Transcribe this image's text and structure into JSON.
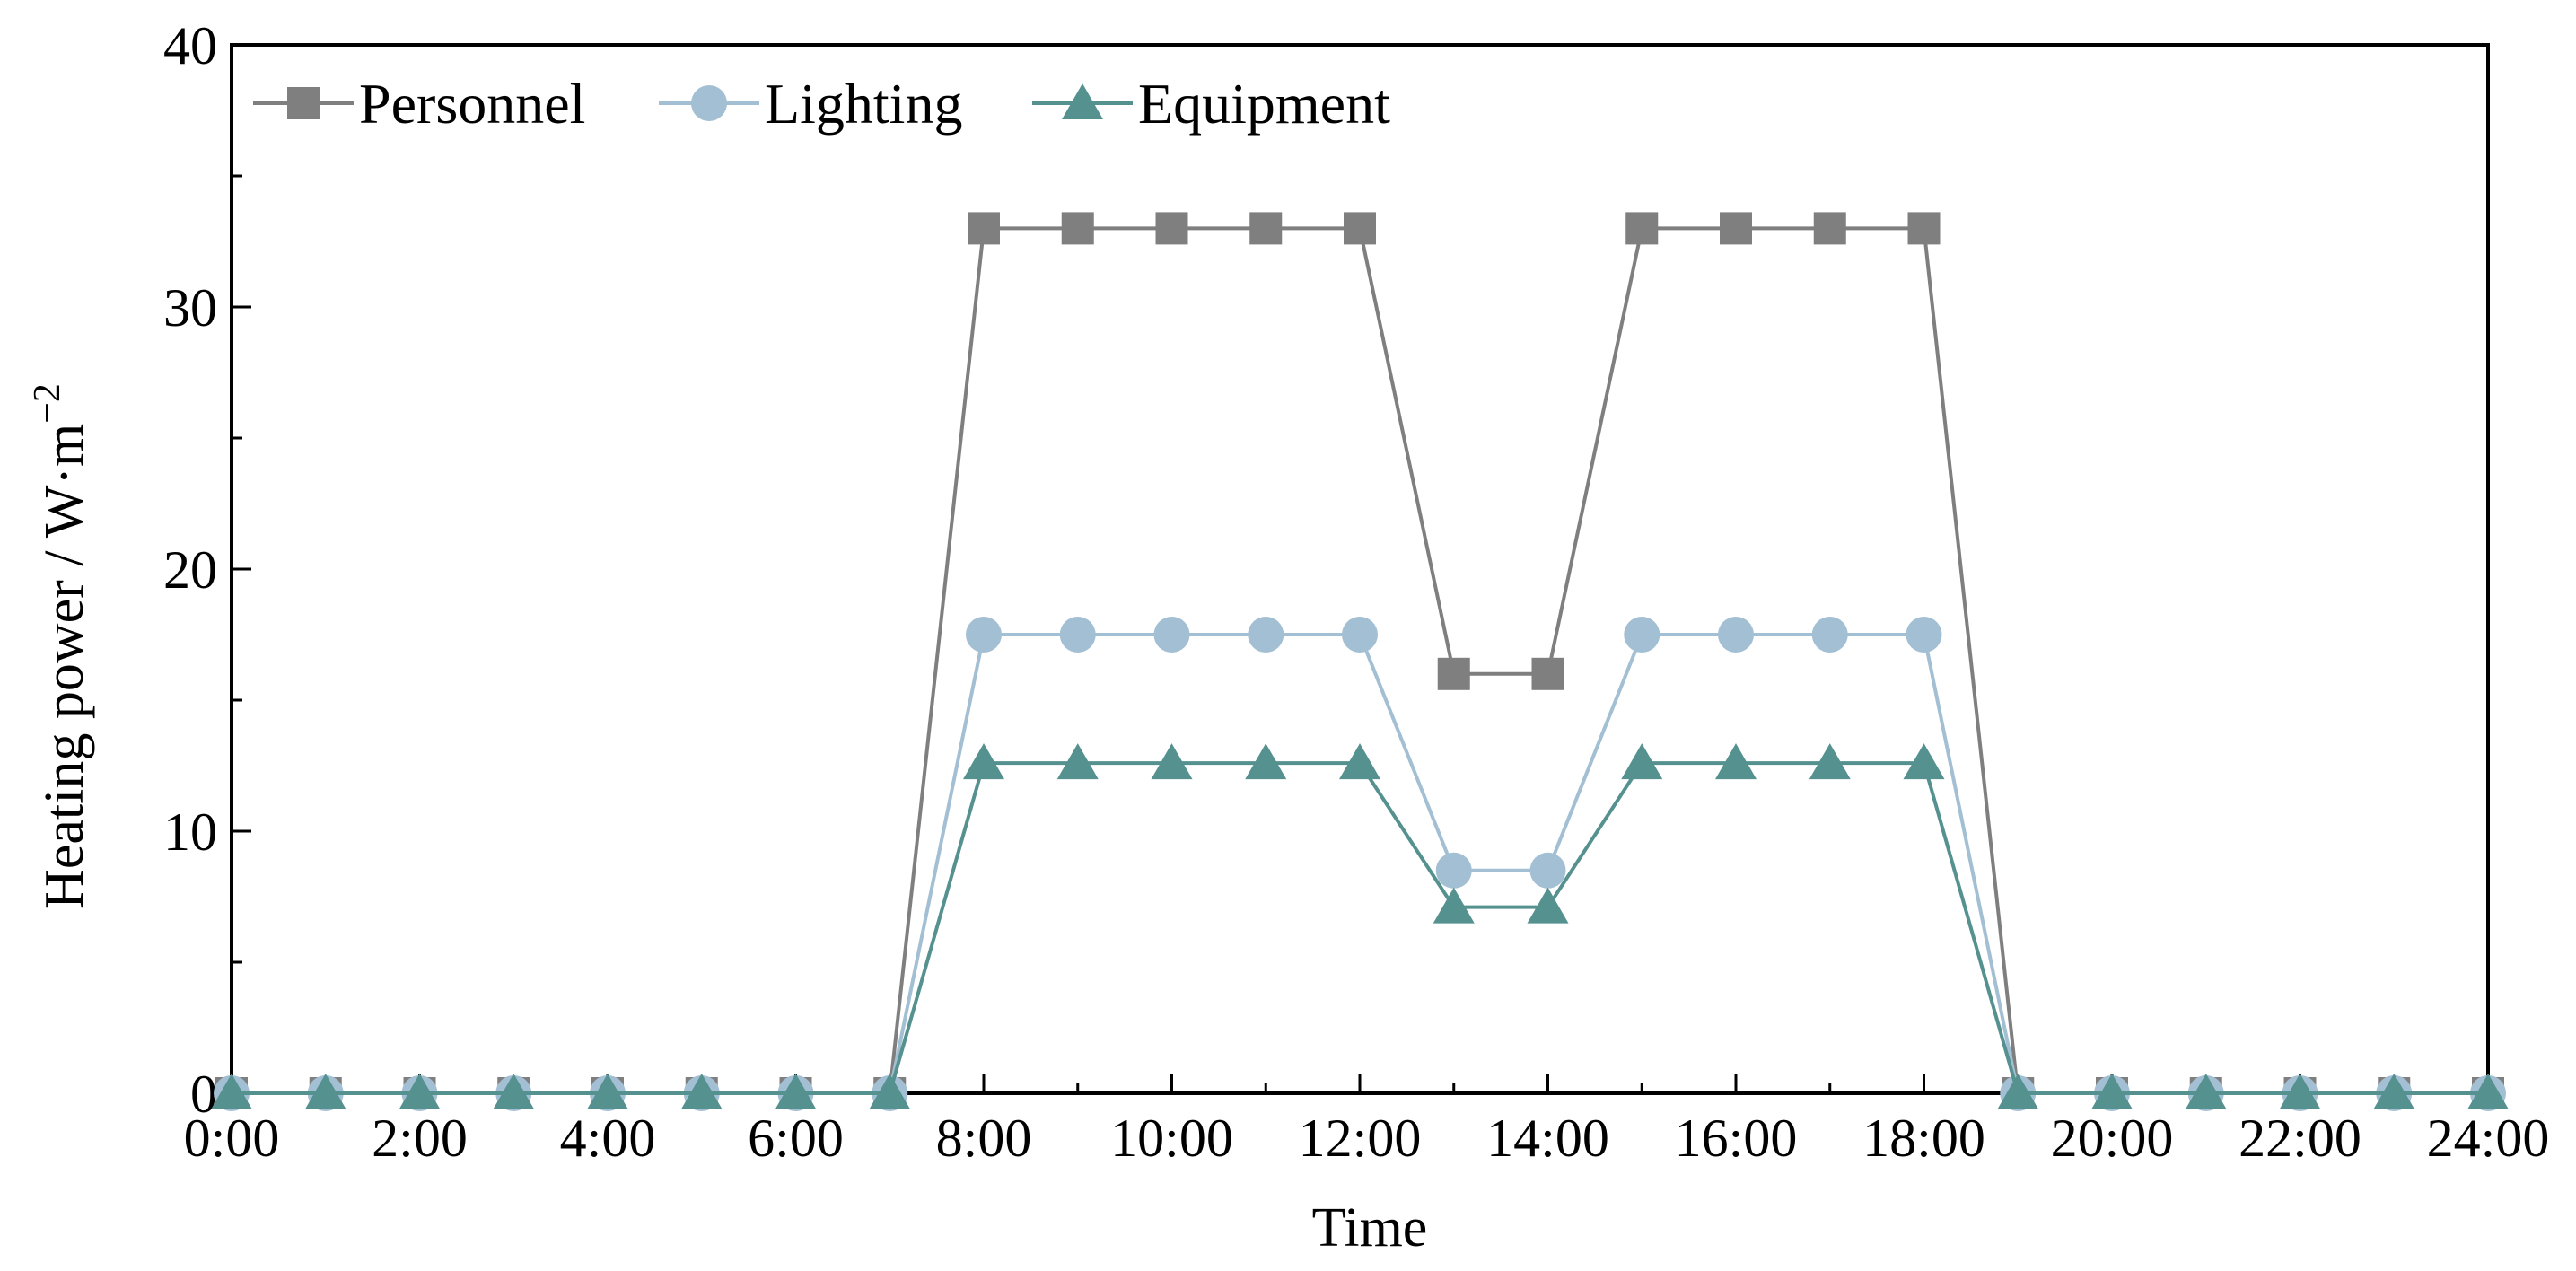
{
  "chart_data": {
    "type": "line",
    "x": [
      0,
      1,
      2,
      3,
      4,
      5,
      6,
      7,
      8,
      9,
      10,
      11,
      12,
      13,
      14,
      15,
      16,
      17,
      18,
      19,
      20,
      21,
      22,
      23,
      24
    ],
    "xticks": [
      0,
      2,
      4,
      6,
      8,
      10,
      12,
      14,
      16,
      18,
      20,
      22,
      24
    ],
    "xtick_labels": [
      "0:00",
      "2:00",
      "4:00",
      "6:00",
      "8:00",
      "10:00",
      "12:00",
      "14:00",
      "16:00",
      "18:00",
      "20:00",
      "22:00",
      "24:00"
    ],
    "xlim": [
      0,
      24
    ],
    "ylim": [
      0,
      40
    ],
    "yticks": [
      0,
      10,
      20,
      30,
      40
    ],
    "ytick_labels": [
      "0",
      "10",
      "20",
      "30",
      "40"
    ],
    "xlabel": "Time",
    "ylabel_main": "Heating power / W·m",
    "ylabel_exp": "−2",
    "legend_position": "top-left",
    "grid": false,
    "series": [
      {
        "name": "Personnel",
        "marker": "square",
        "color": "#7f7f7f",
        "values": [
          0,
          0,
          0,
          0,
          0,
          0,
          0,
          0,
          33,
          33,
          33,
          33,
          33,
          16,
          16,
          33,
          33,
          33,
          33,
          0,
          0,
          0,
          0,
          0,
          0
        ]
      },
      {
        "name": "Lighting",
        "marker": "circle",
        "color": "#a3bfd3",
        "values": [
          0,
          0,
          0,
          0,
          0,
          0,
          0,
          0,
          17.5,
          17.5,
          17.5,
          17.5,
          17.5,
          8.5,
          8.5,
          17.5,
          17.5,
          17.5,
          17.5,
          0,
          0,
          0,
          0,
          0,
          0
        ]
      },
      {
        "name": "Equipment",
        "marker": "triangle",
        "color": "#55918f",
        "values": [
          0,
          0,
          0,
          0,
          0,
          0,
          0,
          0,
          12.6,
          12.6,
          12.6,
          12.6,
          12.6,
          7.1,
          7.1,
          12.6,
          12.6,
          12.6,
          12.6,
          0,
          0,
          0,
          0,
          0,
          0
        ]
      }
    ]
  }
}
